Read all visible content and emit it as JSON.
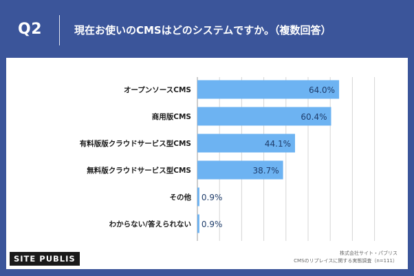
{
  "header": {
    "question_number": "Q2",
    "question_text": "現在お使いのCMSはどのシステムですか。（複数回答）"
  },
  "chart_data": {
    "type": "bar",
    "orientation": "horizontal",
    "categories": [
      "オープンソースCMS",
      "商用版CMS",
      "有料版版クラウドサービス型CMS",
      "無料版クラウドサービス型CMS",
      "その他",
      "わからない/答えられない"
    ],
    "values": [
      64.0,
      60.4,
      44.1,
      38.7,
      0.9,
      0.9
    ],
    "value_labels": [
      "64.0%",
      "60.4%",
      "44.1%",
      "38.7%",
      "0.9%",
      "0.9%"
    ],
    "xlim": [
      0,
      80
    ],
    "grid": true,
    "bar_color": "#6db3f2",
    "label_color_inside": "#1f3d6b"
  },
  "footer": {
    "logo_text": "SITE PUBLIS",
    "source_line1": "株式会社サイト・パブリス",
    "source_line2": "CMSのリプレイスに関する実態調査（n=111）"
  }
}
